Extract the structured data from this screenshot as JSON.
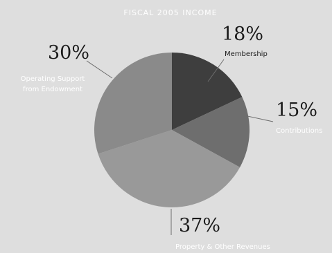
{
  "chart_data": {
    "type": "pie",
    "title": "FISCAL 2005 INCOME",
    "slices": [
      {
        "percent_label": "18%",
        "value": 18,
        "label": [
          "Membership"
        ],
        "color": "#3e3e3e",
        "label_style": "dark"
      },
      {
        "percent_label": "15%",
        "value": 15,
        "label": [
          "Contributions"
        ],
        "color": "#6e6e6e",
        "label_style": "light"
      },
      {
        "percent_label": "37%",
        "value": 37,
        "label": [
          "Property & Other Revenues"
        ],
        "color": "#999999",
        "label_style": "light"
      },
      {
        "percent_label": "30%",
        "value": 30,
        "label": [
          "Operating Support",
          "from Endowment"
        ],
        "color": "#8a8a8a",
        "label_style": "light"
      }
    ]
  }
}
